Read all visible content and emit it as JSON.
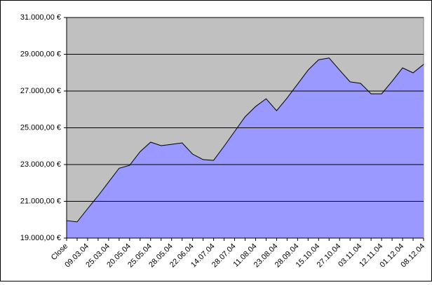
{
  "chart_data": {
    "type": "area",
    "categories": [
      "Close",
      null,
      "09.03.04",
      null,
      "25.03.04",
      null,
      "20.05.04",
      null,
      "25.05.04",
      null,
      "28.05.04",
      null,
      "22.06.04",
      null,
      "14.07.04",
      null,
      "28.07.04",
      null,
      "11.08.04",
      null,
      "23.08.04",
      null,
      "28.09.04",
      null,
      "15.10.04",
      null,
      "27.10.04",
      null,
      "03.11.04",
      null,
      "12.11.04",
      null,
      "01.12.04",
      null,
      "08.12.04"
    ],
    "values": [
      19950,
      19880,
      20600,
      21300,
      22050,
      22800,
      22960,
      23700,
      24220,
      24030,
      24100,
      24180,
      23570,
      23270,
      23230,
      24000,
      24800,
      25600,
      26160,
      26580,
      25930,
      26620,
      27380,
      28140,
      28700,
      28800,
      28140,
      27500,
      27420,
      26850,
      26850,
      27530,
      28260,
      27990,
      28450
    ],
    "color": "#9999ff",
    "plot_background": "#c0c0c0",
    "ylim": [
      19000,
      31000
    ],
    "yticks": [
      {
        "value": 19000,
        "label": "19.000,00 €"
      },
      {
        "value": 21000,
        "label": "21.000,00 €"
      },
      {
        "value": 23000,
        "label": "23.000,00 €"
      },
      {
        "value": 25000,
        "label": "25.000,00 €"
      },
      {
        "value": 27000,
        "label": "27.000,00 €"
      },
      {
        "value": 29000,
        "label": "29.000,00 €"
      },
      {
        "value": 31000,
        "label": "31.000,00 €"
      }
    ],
    "grid": true
  }
}
